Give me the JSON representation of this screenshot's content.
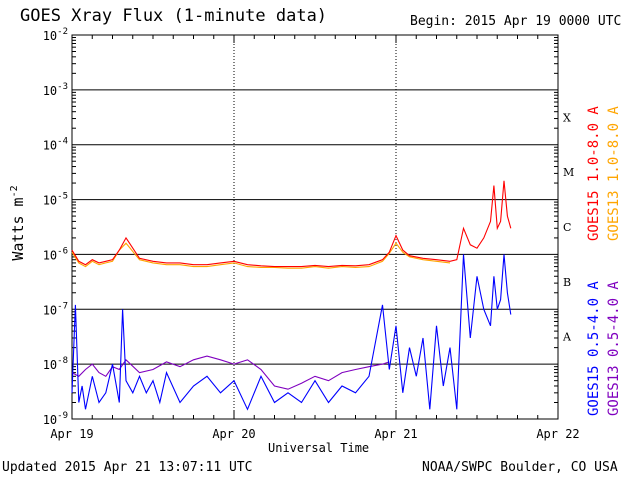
{
  "title": "GOES Xray Flux (1-minute data)",
  "begin": "Begin:  2015 Apr 19 0000 UTC",
  "updated": "Updated 2015 Apr 21 13:07:11 UTC",
  "credit": "NOAA/SWPC Boulder, CO USA",
  "chart_data": {
    "type": "line",
    "title": "GOES Xray Flux (1-minute data)",
    "xlabel": "Universal Time",
    "ylabel": "Watts m",
    "ylabel_superscript": "-2",
    "yscale": "log",
    "ylim": [
      1e-09,
      0.01
    ],
    "xlim": [
      0,
      72
    ],
    "x_unit": "hours since 2015 Apr 19 0000 UTC",
    "x_ticks": [
      {
        "x": 0,
        "label": "Apr 19"
      },
      {
        "x": 24,
        "label": "Apr 20"
      },
      {
        "x": 48,
        "label": "Apr 21"
      },
      {
        "x": 72,
        "label": "Apr 22"
      }
    ],
    "y_ticks": [
      {
        "exp": -9,
        "label": "10"
      },
      {
        "exp": -8,
        "label": "10"
      },
      {
        "exp": -7,
        "label": "10"
      },
      {
        "exp": -6,
        "label": "10"
      },
      {
        "exp": -5,
        "label": "10"
      },
      {
        "exp": -4,
        "label": "10"
      },
      {
        "exp": -3,
        "label": "10"
      },
      {
        "exp": -2,
        "label": "10"
      }
    ],
    "flare_classes": [
      {
        "label": "A",
        "low": 1e-08,
        "high": 1e-07
      },
      {
        "label": "B",
        "low": 1e-07,
        "high": 1e-06
      },
      {
        "label": "C",
        "low": 1e-06,
        "high": 1e-05
      },
      {
        "label": "M",
        "low": 1e-05,
        "high": 0.0001
      },
      {
        "label": "X",
        "low": 0.0001,
        "high": 0.001
      }
    ],
    "grid": "horizontal at each decade",
    "legend_placement": "right, vertical",
    "series": [
      {
        "name": "GOES13 1.0-8.0 A",
        "color": "#ffa500",
        "x": [
          0,
          1,
          2,
          3,
          4,
          5,
          6,
          7,
          8,
          10,
          12,
          14,
          16,
          18,
          20,
          22,
          24,
          26,
          28,
          30,
          32,
          34,
          36,
          38,
          40,
          42,
          44,
          46,
          47,
          48,
          49,
          50,
          52,
          54,
          56
        ],
        "values": [
          1.1e-06,
          7e-07,
          6e-07,
          7.5e-07,
          6.5e-07,
          7e-07,
          7.5e-07,
          1.2e-06,
          1.6e-06,
          8e-07,
          7e-07,
          6.5e-07,
          6.5e-07,
          6e-07,
          6e-07,
          6.5e-07,
          7e-07,
          6e-07,
          5.8e-07,
          5.8e-07,
          5.6e-07,
          5.6e-07,
          6e-07,
          5.6e-07,
          6e-07,
          5.8e-07,
          6e-07,
          7.5e-07,
          1.05e-06,
          1.6e-06,
          1.1e-06,
          9e-07,
          8e-07,
          7.5e-07,
          7e-07
        ]
      },
      {
        "name": "GOES15 1.0-8.0 A",
        "color": "#ff0000",
        "x": [
          0,
          1,
          2,
          3,
          4,
          5,
          6,
          7,
          8,
          10,
          12,
          14,
          16,
          18,
          20,
          22,
          24,
          26,
          28,
          30,
          32,
          34,
          36,
          38,
          40,
          42,
          44,
          46,
          47,
          48,
          49,
          50,
          52,
          54,
          56,
          57,
          58,
          59,
          60,
          61,
          62,
          62.5,
          63,
          63.5,
          64,
          64.5,
          65
        ],
        "values": [
          1.2e-06,
          7.5e-07,
          6.5e-07,
          8e-07,
          7e-07,
          7.5e-07,
          8e-07,
          1.2e-06,
          2e-06,
          8.5e-07,
          7.5e-07,
          7e-07,
          7e-07,
          6.5e-07,
          6.5e-07,
          7e-07,
          7.5e-07,
          6.5e-07,
          6.2e-07,
          6e-07,
          6e-07,
          6e-07,
          6.3e-07,
          6e-07,
          6.3e-07,
          6.2e-07,
          6.5e-07,
          8e-07,
          1.1e-06,
          2.2e-06,
          1.2e-06,
          9.5e-07,
          8.5e-07,
          8e-07,
          7.5e-07,
          8e-07,
          3e-06,
          1.5e-06,
          1.3e-06,
          2e-06,
          4e-06,
          1.8e-05,
          3e-06,
          4e-06,
          2.2e-05,
          5e-06,
          3e-06
        ]
      },
      {
        "name": "GOES13 0.5-4.0 A",
        "color": "#7f00bf",
        "x": [
          0,
          1,
          2,
          3,
          4,
          5,
          6,
          7,
          8,
          10,
          12,
          14,
          16,
          18,
          20,
          22,
          24,
          26,
          28,
          30,
          32,
          34,
          36,
          38,
          40,
          42,
          44,
          46,
          47
        ],
        "values": [
          7e-09,
          6e-09,
          8e-09,
          1e-08,
          7e-09,
          6e-09,
          9e-09,
          8e-09,
          1.2e-08,
          7e-09,
          8e-09,
          1.1e-08,
          9e-09,
          1.2e-08,
          1.4e-08,
          1.2e-08,
          1e-08,
          1.2e-08,
          8e-09,
          4e-09,
          3.5e-09,
          4.5e-09,
          6e-09,
          5e-09,
          7e-09,
          8e-09,
          9e-09,
          1e-08,
          1.1e-08
        ]
      },
      {
        "name": "GOES15 0.5-4.0 A",
        "color": "#0000ff",
        "x": [
          0,
          0.5,
          1,
          1.5,
          2,
          3,
          4,
          5,
          6,
          7,
          7.5,
          8,
          9,
          10,
          11,
          12,
          13,
          14,
          16,
          18,
          20,
          22,
          24,
          26,
          28,
          30,
          32,
          34,
          36,
          38,
          40,
          42,
          44,
          46,
          47,
          48,
          49,
          50,
          51,
          52,
          53,
          54,
          55,
          56,
          57,
          58,
          59,
          60,
          61,
          62,
          62.5,
          63,
          63.5,
          64,
          64.5,
          65
        ],
        "values": [
          3e-09,
          1.2e-07,
          2e-09,
          4e-09,
          1.5e-09,
          6e-09,
          2e-09,
          3e-09,
          1e-08,
          2e-09,
          1e-07,
          5e-09,
          3e-09,
          6e-09,
          3e-09,
          5e-09,
          2e-09,
          7e-09,
          2e-09,
          4e-09,
          6e-09,
          3e-09,
          5e-09,
          1.5e-09,
          6e-09,
          2e-09,
          3e-09,
          2e-09,
          5e-09,
          2e-09,
          4e-09,
          3e-09,
          6e-09,
          1.2e-07,
          8e-09,
          5e-08,
          3e-09,
          2e-08,
          6e-09,
          3e-08,
          1.5e-09,
          5e-08,
          4e-09,
          2e-08,
          1.5e-09,
          1e-06,
          3e-08,
          4e-07,
          1e-07,
          5e-08,
          4e-07,
          1e-07,
          1.5e-07,
          1e-06,
          2e-07,
          8e-08
        ]
      }
    ]
  }
}
